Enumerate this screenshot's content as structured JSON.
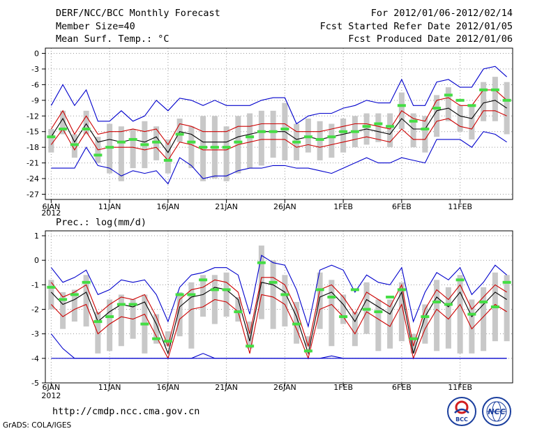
{
  "header": {
    "title": "DERF/NCC/BCC Monthly Forecast",
    "member": "Member Size=40",
    "variable": "Mean Surf. Temp.: °C",
    "period": "For 2012/01/06-2012/02/14",
    "started": "Fcst Started Refer Date 2012/01/05",
    "produced": "Fcst Produced Date 2012/01/06"
  },
  "lower_label": "Prec.: log(mm/d)",
  "footer": {
    "url": "http://cmdp.ncc.cma.gov.cn",
    "grads": "GrADS: COLA/IGES"
  },
  "logos": {
    "bcc": "BCC",
    "ncc": "NCC"
  },
  "colors": {
    "envelope": "#0000cc",
    "spread": "#cc0000",
    "mean": "#000000",
    "bar": "#c8c8c8",
    "marker": "#44dd44",
    "grid": "#999999"
  },
  "chart_data": [
    {
      "type": "line",
      "title": "Mean Surf. Temp.: °C",
      "ylabel": "°C",
      "ylim": [
        -28,
        1
      ],
      "yticks": [
        0,
        -3,
        -6,
        -9,
        -12,
        -15,
        -18,
        -21,
        -24,
        -27
      ],
      "xlim": [
        0.5,
        40.5
      ],
      "xticks": [
        {
          "day": 1,
          "label": "6JAN"
        },
        {
          "day": 6,
          "label": "11JAN"
        },
        {
          "day": 11,
          "label": "16JAN"
        },
        {
          "day": 16,
          "label": "21JAN"
        },
        {
          "day": 21,
          "label": "26JAN"
        },
        {
          "day": 26,
          "label": "1FEB"
        },
        {
          "day": 31,
          "label": "6FEB"
        },
        {
          "day": 36,
          "label": "11FEB"
        }
      ],
      "year_label": "2012",
      "series": [
        {
          "name": "max",
          "color": "#0000cc",
          "values": [
            -10,
            -6,
            -10,
            -7,
            -13,
            -13,
            -11,
            -13,
            -12,
            -9,
            -11,
            -8.6,
            -9,
            -10,
            -9,
            -10,
            -10,
            -10,
            -9,
            -8.5,
            -8.5,
            -13.5,
            -12,
            -11.5,
            -11.5,
            -10.5,
            -10,
            -9,
            -9.5,
            -9.5,
            -5,
            -10,
            -10,
            -5.5,
            -5,
            -6.5,
            -6.5,
            -3,
            -2.5,
            -4.5
          ]
        },
        {
          "name": "upper",
          "color": "#cc0000",
          "values": [
            -14.5,
            -11,
            -15.5,
            -12,
            -15.5,
            -15,
            -15,
            -14.5,
            -15,
            -14.5,
            -17.5,
            -13.5,
            -14,
            -15,
            -15,
            -15,
            -14,
            -14,
            -13.5,
            -13.5,
            -13.5,
            -15,
            -15,
            -15,
            -14.5,
            -14,
            -13.5,
            -13.5,
            -14,
            -14.5,
            -11,
            -12.5,
            -13,
            -9,
            -8.5,
            -10,
            -10,
            -7,
            -7,
            -9
          ]
        },
        {
          "name": "mean",
          "color": "#000000",
          "values": [
            -16,
            -12.5,
            -17,
            -13.5,
            -17,
            -16.5,
            -17,
            -16.5,
            -17,
            -16,
            -19,
            -15,
            -15.5,
            -17,
            -17,
            -17,
            -16,
            -15.5,
            -15,
            -15,
            -15,
            -16.5,
            -16,
            -16.5,
            -16,
            -15.5,
            -15,
            -14.5,
            -15,
            -15.5,
            -12.5,
            -14.5,
            -14.5,
            -11,
            -10.5,
            -12,
            -12.5,
            -9.5,
            -9,
            -10.5
          ]
        },
        {
          "name": "lower",
          "color": "#cc0000",
          "values": [
            -17.5,
            -14.5,
            -18.5,
            -15,
            -18.5,
            -18,
            -18,
            -18,
            -18.5,
            -18,
            -20.5,
            -17,
            -17.5,
            -18.5,
            -18.5,
            -18.5,
            -17.5,
            -17,
            -16.5,
            -16.5,
            -16.5,
            -18,
            -17.5,
            -18,
            -17.5,
            -17,
            -16.5,
            -16,
            -16.5,
            -17,
            -14.5,
            -16.5,
            -16.5,
            -13,
            -12.5,
            -14,
            -14.5,
            -11,
            -11,
            -12
          ]
        },
        {
          "name": "min",
          "color": "#0000cc",
          "values": [
            -22,
            -22,
            -22,
            -18,
            -21.5,
            -22,
            -23.5,
            -22.5,
            -23,
            -22.5,
            -25,
            -20,
            -21.5,
            -24,
            -23.5,
            -23.5,
            -22.5,
            -22,
            -22,
            -21.5,
            -21.5,
            -22,
            -22,
            -22.5,
            -23,
            -22,
            -21,
            -20,
            -21,
            -21,
            -20,
            -20.5,
            -21,
            -16.5,
            -16.5,
            -16.5,
            -18,
            -15,
            -15.5,
            -17
          ]
        }
      ],
      "box_low": [
        -19,
        -15.5,
        -20,
        -15.5,
        -21,
        -23,
        -24.5,
        -22,
        -22,
        -20.5,
        -23,
        -17,
        -22,
        -24.5,
        -24,
        -24.5,
        -23,
        -22,
        -21.5,
        -20,
        -20.5,
        -20.5,
        -19,
        -20.5,
        -20,
        -19,
        -18,
        -17.5,
        -17,
        -18,
        -14.5,
        -18,
        -19,
        -16,
        -13,
        -15,
        -16.5,
        -13,
        -13,
        -15.5
      ],
      "box_high": [
        -14.5,
        -11,
        -15.5,
        -11,
        -16,
        -13.5,
        -14,
        -14.5,
        -13,
        -14,
        -16.5,
        -12.5,
        -14,
        -12,
        -12,
        -14,
        -12,
        -11.5,
        -11,
        -11,
        -9.5,
        -13.5,
        -12.5,
        -13,
        -13.5,
        -12.5,
        -12,
        -11.5,
        -11.5,
        -11.5,
        -7.5,
        -11.5,
        -12,
        -8,
        -6.5,
        -10,
        -10,
        -5.5,
        -4.5,
        -5.5
      ],
      "markers": [
        -16,
        -14.5,
        -17.5,
        -14.5,
        -19.5,
        -18,
        -17,
        -16.5,
        -17.5,
        -17,
        -20.5,
        -15.5,
        -17,
        -18,
        -18,
        -18,
        -17,
        -16,
        -15,
        -15,
        -14.5,
        -17,
        -16,
        -16.5,
        -16,
        -15,
        -15,
        -14,
        -13.5,
        -14,
        -10,
        -13,
        -14.5,
        -10.5,
        -8,
        -9,
        -10,
        -7,
        -7,
        -9
      ]
    },
    {
      "type": "line",
      "title": "Prec.: log(mm/d)",
      "ylabel": "log(mm/d)",
      "ylim": [
        -5,
        1.2
      ],
      "yticks": [
        1,
        0,
        -1,
        -2,
        -3,
        -4,
        -5
      ],
      "xlim": [
        0.5,
        40.5
      ],
      "xticks": [
        {
          "day": 1,
          "label": "6JAN"
        },
        {
          "day": 6,
          "label": "11JAN"
        },
        {
          "day": 11,
          "label": "16JAN"
        },
        {
          "day": 16,
          "label": "21JAN"
        },
        {
          "day": 21,
          "label": "26JAN"
        },
        {
          "day": 26,
          "label": "1FEB"
        },
        {
          "day": 31,
          "label": "6FEB"
        },
        {
          "day": 36,
          "label": "11FEB"
        }
      ],
      "year_label": "2012",
      "series": [
        {
          "name": "max",
          "color": "#0000cc",
          "values": [
            -0.3,
            -0.9,
            -0.7,
            -0.4,
            -1.4,
            -1.2,
            -0.8,
            -0.9,
            -0.8,
            -1.4,
            -2.5,
            -1.1,
            -0.6,
            -0.5,
            -0.3,
            -0.3,
            -0.6,
            -2.2,
            0.2,
            -0.1,
            -0.2,
            -1.2,
            -2.7,
            -0.4,
            -0.2,
            -0.4,
            -1.3,
            -0.6,
            -0.9,
            -1.0,
            -0.3,
            -2.5,
            -1.3,
            -0.5,
            -0.8,
            -0.3,
            -1.4,
            -0.9,
            -0.2,
            -0.6
          ]
        },
        {
          "name": "upper",
          "color": "#cc0000",
          "values": [
            -0.9,
            -1.5,
            -1.3,
            -1.0,
            -2.2,
            -1.8,
            -1.5,
            -1.6,
            -1.4,
            -2.3,
            -3.5,
            -1.6,
            -1.2,
            -1.1,
            -0.8,
            -0.9,
            -1.3,
            -3.0,
            -0.7,
            -0.7,
            -1.0,
            -2.0,
            -3.5,
            -1.2,
            -1.0,
            -1.5,
            -2.2,
            -1.3,
            -1.6,
            -1.9,
            -1.0,
            -3.5,
            -2.0,
            -1.2,
            -1.6,
            -1.0,
            -2.0,
            -1.5,
            -1.0,
            -1.3
          ]
        },
        {
          "name": "mean",
          "color": "#000000",
          "values": [
            -1.3,
            -1.8,
            -1.6,
            -1.3,
            -2.5,
            -2.1,
            -1.8,
            -1.9,
            -1.7,
            -2.6,
            -3.8,
            -1.9,
            -1.5,
            -1.4,
            -1.1,
            -1.2,
            -1.6,
            -3.3,
            -0.9,
            -1.0,
            -1.3,
            -2.3,
            -3.8,
            -1.5,
            -1.3,
            -1.8,
            -2.5,
            -1.6,
            -1.9,
            -2.2,
            -1.3,
            -3.8,
            -2.3,
            -1.5,
            -1.9,
            -1.3,
            -2.3,
            -1.8,
            -1.3,
            -1.6
          ]
        },
        {
          "name": "lower",
          "color": "#cc0000",
          "values": [
            -1.8,
            -2.3,
            -2.0,
            -1.8,
            -3.0,
            -2.6,
            -2.3,
            -2.4,
            -2.2,
            -3.1,
            -4.0,
            -2.4,
            -2.0,
            -1.9,
            -1.6,
            -1.7,
            -2.1,
            -3.8,
            -1.4,
            -1.5,
            -1.8,
            -2.8,
            -4.0,
            -2.0,
            -1.8,
            -2.3,
            -3.0,
            -2.1,
            -2.4,
            -2.7,
            -1.8,
            -4.0,
            -2.8,
            -2.0,
            -2.4,
            -1.8,
            -2.8,
            -2.3,
            -1.8,
            -2.1
          ]
        },
        {
          "name": "min",
          "color": "#0000cc",
          "values": [
            -3.0,
            -3.6,
            -4.0,
            -4.0,
            -4.0,
            -4.0,
            -4.0,
            -4.0,
            -4.0,
            -4.0,
            -4.0,
            -4.0,
            -4.0,
            -3.8,
            -4.0,
            -4.0,
            -4.0,
            -4.0,
            -4.0,
            -4.0,
            -4.0,
            -4.0,
            -4.0,
            -4.0,
            -3.9,
            -4.0,
            -4.0,
            -4.0,
            -4.0,
            -4.0,
            -4.0,
            -4.0,
            -4.0,
            -4.0,
            -4.0,
            -4.0,
            -4.0,
            -4.0,
            -4.0,
            -4.0
          ]
        },
        {
          "name": "floor",
          "color": "#0000cc",
          "values": [
            -4.0,
            -4.0,
            -4.0,
            -4.0,
            -4.0,
            -4.0,
            -4.0,
            -4.0,
            -4.0,
            -4.0,
            -4.0,
            -4.0,
            -4.0,
            -4.0,
            -4.0,
            -4.0,
            -4.0,
            -4.0,
            -4.0,
            -4.0,
            -4.0,
            -4.0,
            -4.0,
            -4.0,
            -4.0,
            -4.0,
            -4.0,
            -4.0,
            -4.0,
            -4.0,
            -4.0,
            -4.0,
            -4.0,
            -4.0,
            -4.0,
            -4.0,
            -4.0,
            -4.0,
            -4.0,
            -4.0
          ]
        }
      ],
      "box_low": [
        -2.0,
        -2.8,
        -2.5,
        -2.7,
        -3.8,
        -3.7,
        -3.5,
        -3.2,
        -3.8,
        -3.4,
        -3.5,
        -3.1,
        -3.6,
        -2.3,
        -2.6,
        -2.3,
        -2.5,
        -3.6,
        -2.4,
        -2.8,
        -2.7,
        -3.4,
        -3.5,
        -2.8,
        -3.5,
        -2.6,
        -3.5,
        -3.0,
        -3.7,
        -3.6,
        -3.3,
        -3.8,
        -3.4,
        -3.7,
        -3.6,
        -3.8,
        -3.8,
        -3.7,
        -3.3,
        -3.3
      ],
      "box_high": [
        -0.8,
        -1.3,
        -1.2,
        -0.6,
        -2.1,
        -1.6,
        -1.4,
        -1.6,
        -1.4,
        -2.2,
        -2.9,
        -1.3,
        -0.9,
        -0.6,
        -0.6,
        -0.5,
        -1.5,
        -2.5,
        0.6,
        0.0,
        -0.6,
        -1.7,
        -3.1,
        -0.5,
        -0.8,
        -1.4,
        -2.1,
        -0.9,
        -1.6,
        -1.6,
        -0.9,
        -3.0,
        -1.8,
        -0.8,
        -1.1,
        -0.6,
        -1.6,
        -1.1,
        -0.5,
        -0.6
      ],
      "markers": [
        -1.1,
        -1.6,
        -1.4,
        -0.9,
        -2.5,
        -2.3,
        -1.8,
        -1.8,
        -2.6,
        -3.2,
        -3.3,
        -1.4,
        -1.4,
        -0.8,
        -1.2,
        -1.2,
        -2.1,
        -3.5,
        -0.1,
        -0.9,
        -1.4,
        -2.6,
        -3.7,
        -1.2,
        -1.5,
        -2.3,
        -1.2,
        -2.0,
        -2.1,
        -1.5,
        -1.2,
        -3.2,
        -2.3,
        -1.7,
        -1.8,
        -0.8,
        -2.2,
        -1.7,
        -1.9,
        -0.9
      ]
    }
  ]
}
